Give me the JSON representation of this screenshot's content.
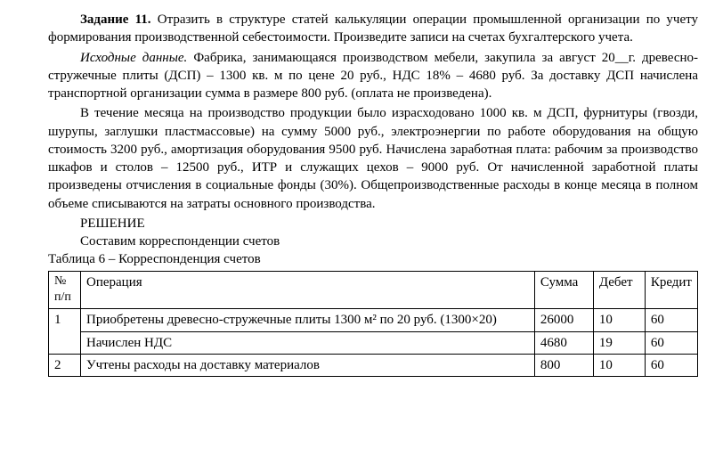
{
  "task": {
    "label": "Задание 11.",
    "intro_text": " Отразить в структуре статей калькуляции операции промышленной организации по учету формирования производственной себе­стоимости. Произведите записи на счетах бухгалтерского учета."
  },
  "source_data": {
    "label": "Исходные данные.",
    "text": "   Фабрика, занимающаяся производством мебели, закупила за август 20__г. древесно-стружечные плиты (ДСП) –  1300 кв. м по цене 20 руб., НДС 18% – 4680 руб. За доставку ДСП начислена транспортной организации сумма в размере 800 руб. (оплата не произведена)."
  },
  "paragraph2": "В течение месяца на производство продукции было израсходовано 1000 кв. м ДСП, фурнитуры (гвозди, шурупы, заглушки пластмассовые) на сумму 5000 руб., электроэнергии по работе оборудования на общую стоимость 3200 руб., амортизация оборудования 9500 руб. Начислена заработная плата: рабочим за производство шкафов и столов – 12500 руб., ИТР и служащих цехов – 9000 руб. От начисленной заработной платы произведены отчисления в социальные фонды (30%). Общепроизводственные расходы в конце месяца в полном объеме списываются на затраты основного производства.",
  "solution": {
    "heading": "РЕШЕНИЕ",
    "subheading": "Составим корреспонденции счетов"
  },
  "table": {
    "caption": "Таблица 6 – Корреспонденция счетов",
    "headers": {
      "num": "№ п/п",
      "operation": "Операция",
      "sum": "Сумма",
      "debit": "Дебет",
      "credit": "Кредит"
    },
    "rows": [
      {
        "num": "1",
        "operation": "Приобретены древесно-стружечные плиты 1300 м² по 20 руб. (1300×20)",
        "sum": "26000",
        "debit": "10",
        "credit": "60"
      },
      {
        "num": "",
        "operation": "Начислен НДС",
        "sum": "4680",
        "debit": "19",
        "credit": "60"
      },
      {
        "num": "2",
        "operation": "Учтены расходы на доставку материалов",
        "sum": "800",
        "debit": "10",
        "credit": "60"
      }
    ]
  }
}
